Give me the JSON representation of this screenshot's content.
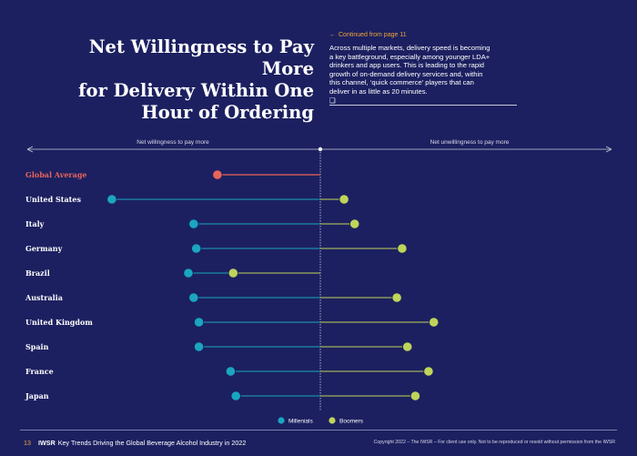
{
  "header": {
    "title_lines": [
      "Net Willingness to Pay More",
      "for Delivery Within One",
      "Hour of Ordering"
    ],
    "continued": "Continued from page 11",
    "intro_lines": [
      "Across multiple markets, delivery speed is becoming",
      "a key battleground, especially among younger LDA+",
      "drinkers and app users. This is leading to the rapid",
      "growth of on-demand delivery services and, within",
      "this channel, ‘quick commerce’ players that can",
      "deliver in as little as 20 minutes."
    ]
  },
  "chart_data": {
    "type": "dumbbell",
    "left_label": "Net willingness to pay more",
    "right_label": "Net unwillingness to pay more",
    "categories": [
      "Global Average",
      "United States",
      "Italy",
      "Germany",
      "Brazil",
      "Australia",
      "United Kingdom",
      "Spain",
      "France",
      "Japan"
    ],
    "series": [
      {
        "name": "Millenials",
        "color": "#1aa6c0",
        "values": [
          null,
          -0.79,
          -0.48,
          -0.47,
          -0.5,
          -0.48,
          -0.46,
          -0.46,
          -0.34,
          -0.32
        ]
      },
      {
        "name": "Boomers",
        "color": "#bfd45a",
        "values": [
          null,
          0.09,
          0.13,
          0.31,
          -0.33,
          0.29,
          0.43,
          0.33,
          0.41,
          0.36
        ]
      }
    ],
    "global_average": {
      "value": -0.39,
      "color": "#e8645a"
    },
    "xlim": [
      -1,
      1
    ],
    "legend_position": "bottom-center"
  },
  "footer": {
    "page_number": "13",
    "brand": "IWSR",
    "report_title": "Key Trends Driving the Global Beverage Alcohol Industry in 2022",
    "copyright": "Copyright 2022 – The IWSR – For client use only. Not to be reproduced or resold without permission from the IWSR"
  },
  "colors": {
    "background": "#1c2060",
    "accent_orange": "#f0a33a",
    "millennials": "#1aa6c0",
    "boomers": "#bfd45a",
    "global_average": "#e8645a"
  }
}
